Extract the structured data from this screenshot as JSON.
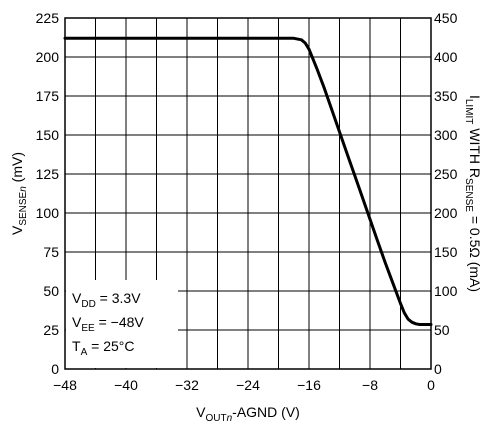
{
  "chart_data": {
    "type": "line",
    "xlabel": {
      "main": "V",
      "sub": "OUT",
      "italic": "n",
      "rest": "-AGND (V)"
    },
    "ylabel": {
      "main": "V",
      "sub": "SENSE",
      "italic": "n",
      "rest": " (mV)"
    },
    "y2label": {
      "p1": "I",
      "s1": "LIMIT",
      "p2": " WITH R",
      "s2": "SENSE",
      "p3": " = 0.5Ω (mA)"
    },
    "xlim": [
      -48,
      0
    ],
    "ylim": [
      0,
      225
    ],
    "y2lim": [
      0,
      450
    ],
    "x_ticks": [
      -48,
      -40,
      -32,
      -24,
      -16,
      -8,
      0
    ],
    "x_tick_labels": [
      "−48",
      "−40",
      "−32",
      "−24",
      "−16",
      "−8",
      "0"
    ],
    "y_ticks": [
      0,
      25,
      50,
      75,
      100,
      125,
      150,
      175,
      200,
      225
    ],
    "y_tick_labels": [
      "0",
      "25",
      "50",
      "75",
      "100",
      "125",
      "150",
      "175",
      "200",
      "225"
    ],
    "y2_ticks": [
      0,
      50,
      100,
      150,
      200,
      250,
      300,
      350,
      400,
      450
    ],
    "y2_tick_labels": [
      "0",
      "50",
      "100",
      "150",
      "200",
      "250",
      "300",
      "350",
      "400",
      "450"
    ],
    "x_grid_step": 4,
    "grid": true,
    "series": [
      {
        "x": [
          -48,
          -40,
          -32,
          -24,
          -20,
          -18,
          -17,
          -16.5,
          -16,
          -15,
          -14,
          -13,
          -12,
          -11,
          -10,
          -9,
          -8,
          -7,
          -6,
          -5,
          -4,
          -3.5,
          -3,
          -2.5,
          -2,
          -1.5,
          -1,
          -0.5,
          0
        ],
        "y": [
          212,
          212,
          212,
          212,
          212,
          212,
          211,
          209,
          205,
          193,
          180,
          166,
          152,
          138,
          124,
          110,
          96,
          82,
          68,
          55,
          42,
          36,
          32,
          30,
          29,
          28.5,
          28.5,
          28.5,
          28.5
        ]
      }
    ],
    "annotations": [
      {
        "main": "V",
        "sub": "DD",
        "rest": " = 3.3V"
      },
      {
        "main": "V",
        "sub": "EE",
        "rest": " = −48V"
      },
      {
        "main": "T",
        "sub": "A",
        "rest": " = 25°C"
      }
    ]
  }
}
